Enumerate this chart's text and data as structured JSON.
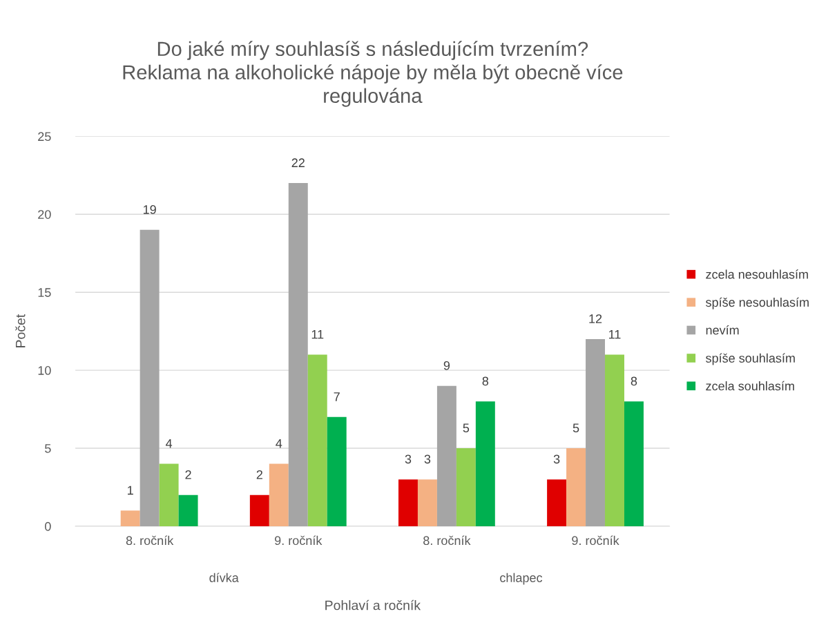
{
  "chart_data": {
    "type": "bar",
    "title": "Do jaké míry souhlasíš s následujícím tvrzením?\nReklama na alkoholické nápoje by měla být obecně více\nregulována",
    "xlabel": "Pohlaví a ročník",
    "ylabel": "Počet",
    "categories": [
      "8. ročník",
      "9. ročník",
      "8. ročník",
      "9. ročník"
    ],
    "annotations": [
      "dívka",
      "chlapec"
    ],
    "series": [
      {
        "name": "zcela nesouhlasím",
        "color": "#e00000",
        "values": [
          null,
          2,
          3,
          3
        ]
      },
      {
        "name": "spíše nesouhlasím",
        "color": "#f4b183",
        "values": [
          1,
          4,
          3,
          5
        ]
      },
      {
        "name": "nevím",
        "color": "#a5a5a5",
        "values": [
          19,
          22,
          9,
          12
        ]
      },
      {
        "name": "spíše souhlasím",
        "color": "#92d050",
        "values": [
          4,
          11,
          5,
          11
        ]
      },
      {
        "name": "zcela souhlasím",
        "color": "#00b050",
        "values": [
          2,
          7,
          8,
          8
        ]
      }
    ],
    "ylim": [
      0,
      25
    ],
    "yticks": [
      0,
      5,
      10,
      15,
      20,
      25
    ],
    "grid": "y",
    "legend": "right",
    "data_labels": true
  }
}
